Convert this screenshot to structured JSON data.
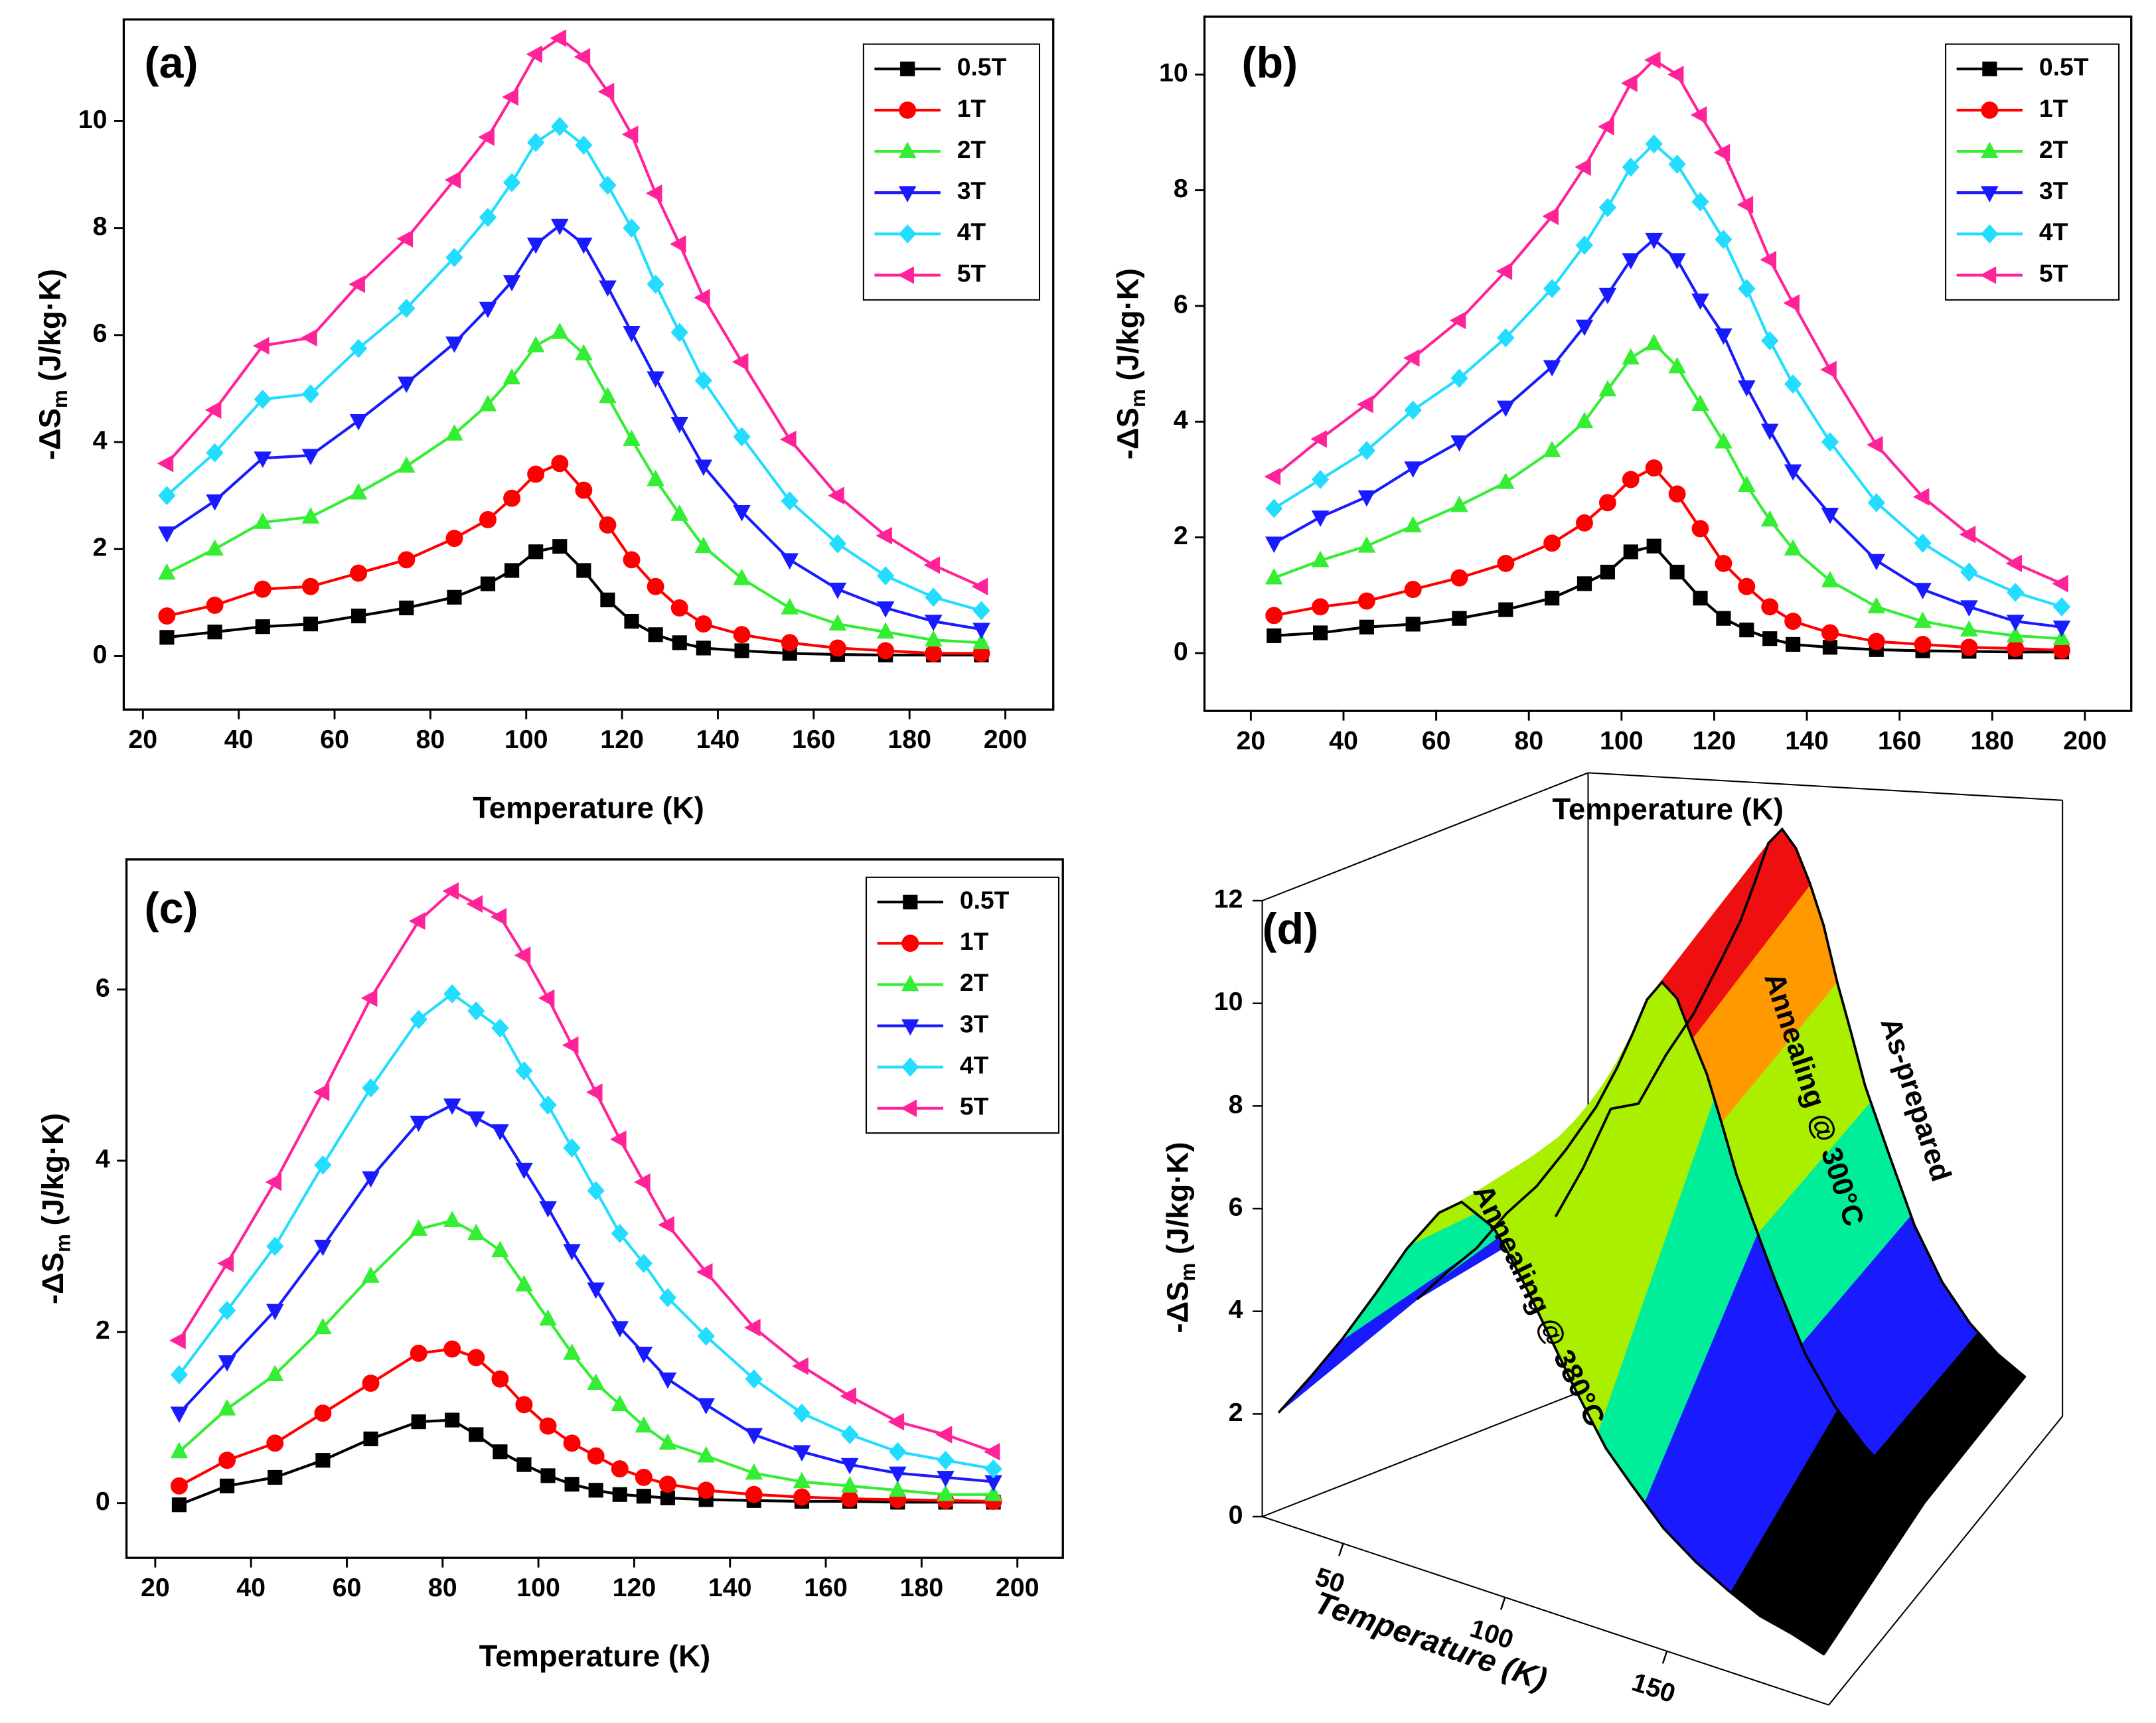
{
  "chart_data": [
    {
      "type": "line",
      "annotation": "(a)",
      "xlabel": "Temperature (K)",
      "ylabel": [
        "-ΔS",
        "m",
        " (J/kg·K)"
      ],
      "x": [
        25,
        35,
        45,
        55,
        65,
        75,
        85,
        92,
        97,
        102,
        107,
        112,
        117,
        122,
        127,
        132,
        137,
        145,
        155,
        165,
        175,
        185,
        195
      ],
      "xlim": [
        16,
        210
      ],
      "xticks": [
        20,
        40,
        60,
        80,
        100,
        120,
        140,
        160,
        180,
        200
      ],
      "ylim": [
        -1,
        11.9
      ],
      "yticks": [
        0,
        2,
        4,
        6,
        8,
        10
      ],
      "legend": "upper right",
      "series": [
        {
          "name": "0.5T",
          "color": "#000000",
          "marker": "square",
          "values": [
            0.35,
            0.45,
            0.55,
            0.6,
            0.75,
            0.9,
            1.1,
            1.35,
            1.6,
            1.95,
            2.05,
            1.6,
            1.05,
            0.65,
            0.4,
            0.25,
            0.15,
            0.1,
            0.05,
            0.03,
            0.02,
            0.02,
            0.02
          ]
        },
        {
          "name": "1T",
          "color": "#ff0000",
          "marker": "circle",
          "values": [
            0.75,
            0.95,
            1.25,
            1.3,
            1.55,
            1.8,
            2.2,
            2.55,
            2.95,
            3.4,
            3.6,
            3.1,
            2.45,
            1.8,
            1.3,
            0.9,
            0.6,
            0.4,
            0.25,
            0.15,
            0.1,
            0.05,
            0.05
          ]
        },
        {
          "name": "2T",
          "color": "#33ee33",
          "marker": "triangle-up",
          "values": [
            1.55,
            2.0,
            2.5,
            2.6,
            3.05,
            3.55,
            4.15,
            4.7,
            5.2,
            5.8,
            6.05,
            5.65,
            4.85,
            4.05,
            3.3,
            2.65,
            2.05,
            1.45,
            0.9,
            0.6,
            0.45,
            0.3,
            0.25
          ]
        },
        {
          "name": "3T",
          "color": "#1a1aff",
          "marker": "triangle-down",
          "values": [
            2.3,
            2.9,
            3.7,
            3.75,
            4.4,
            5.1,
            5.85,
            6.5,
            7.0,
            7.7,
            8.05,
            7.7,
            6.9,
            6.05,
            5.2,
            4.35,
            3.55,
            2.7,
            1.8,
            1.25,
            0.9,
            0.65,
            0.5
          ]
        },
        {
          "name": "4T",
          "color": "#22ddff",
          "marker": "diamond",
          "values": [
            3.0,
            3.8,
            4.8,
            4.9,
            5.75,
            6.5,
            7.45,
            8.2,
            8.85,
            9.6,
            9.9,
            9.55,
            8.8,
            8.0,
            6.95,
            6.05,
            5.15,
            4.1,
            2.9,
            2.1,
            1.5,
            1.1,
            0.85
          ]
        },
        {
          "name": "5T",
          "color": "#ff2299",
          "marker": "triangle-left",
          "values": [
            3.6,
            4.6,
            5.8,
            5.95,
            6.95,
            7.8,
            8.9,
            9.7,
            10.45,
            11.25,
            11.55,
            11.2,
            10.55,
            9.75,
            8.65,
            7.7,
            6.7,
            5.5,
            4.05,
            3.0,
            2.25,
            1.7,
            1.3
          ]
        }
      ]
    },
    {
      "type": "line",
      "annotation": "(b)",
      "xlabel": "Temperature (K)",
      "ylabel": [
        "-ΔS",
        "m",
        " (J/kg·K)"
      ],
      "x": [
        25,
        35,
        45,
        55,
        65,
        75,
        85,
        92,
        97,
        102,
        107,
        112,
        117,
        122,
        127,
        132,
        137,
        145,
        155,
        165,
        175,
        185,
        195
      ],
      "xlim": [
        10,
        210
      ],
      "xticks": [
        20,
        40,
        60,
        80,
        100,
        120,
        140,
        160,
        180,
        200
      ],
      "ylim": [
        -1,
        11
      ],
      "yticks": [
        0,
        2,
        4,
        6,
        8,
        10
      ],
      "legend": "upper right",
      "series": [
        {
          "name": "0.5T",
          "color": "#000000",
          "marker": "square",
          "values": [
            0.3,
            0.35,
            0.45,
            0.5,
            0.6,
            0.75,
            0.95,
            1.2,
            1.4,
            1.75,
            1.85,
            1.4,
            0.95,
            0.6,
            0.4,
            0.25,
            0.15,
            0.1,
            0.06,
            0.04,
            0.03,
            0.02,
            0.02
          ]
        },
        {
          "name": "1T",
          "color": "#ff0000",
          "marker": "circle",
          "values": [
            0.65,
            0.8,
            0.9,
            1.1,
            1.3,
            1.55,
            1.9,
            2.25,
            2.6,
            3.0,
            3.2,
            2.75,
            2.15,
            1.55,
            1.15,
            0.8,
            0.55,
            0.35,
            0.2,
            0.15,
            0.1,
            0.08,
            0.05
          ]
        },
        {
          "name": "2T",
          "color": "#33ee33",
          "marker": "triangle-up",
          "values": [
            1.3,
            1.6,
            1.85,
            2.2,
            2.55,
            2.95,
            3.5,
            4.0,
            4.55,
            5.1,
            5.35,
            4.95,
            4.3,
            3.65,
            2.9,
            2.3,
            1.8,
            1.25,
            0.8,
            0.55,
            0.4,
            0.3,
            0.25
          ]
        },
        {
          "name": "3T",
          "color": "#1a1aff",
          "marker": "triangle-down",
          "values": [
            1.9,
            2.35,
            2.7,
            3.2,
            3.65,
            4.25,
            4.95,
            5.65,
            6.2,
            6.8,
            7.15,
            6.8,
            6.1,
            5.5,
            4.6,
            3.85,
            3.15,
            2.4,
            1.6,
            1.1,
            0.8,
            0.55,
            0.45
          ]
        },
        {
          "name": "4T",
          "color": "#22ddff",
          "marker": "diamond",
          "values": [
            2.5,
            3.0,
            3.5,
            4.2,
            4.75,
            5.45,
            6.3,
            7.05,
            7.7,
            8.4,
            8.8,
            8.45,
            7.8,
            7.15,
            6.3,
            5.4,
            4.65,
            3.65,
            2.6,
            1.9,
            1.4,
            1.05,
            0.8
          ]
        },
        {
          "name": "5T",
          "color": "#ff2299",
          "marker": "triangle-left",
          "values": [
            3.05,
            3.7,
            4.3,
            5.1,
            5.75,
            6.6,
            7.55,
            8.4,
            9.1,
            9.85,
            10.25,
            10.0,
            9.3,
            8.65,
            7.75,
            6.8,
            6.05,
            4.9,
            3.6,
            2.7,
            2.05,
            1.55,
            1.2
          ]
        }
      ]
    },
    {
      "type": "line",
      "annotation": "(c)",
      "xlabel": "Temperature (K)",
      "ylabel": [
        "-ΔS",
        "m",
        " (J/kg·K)"
      ],
      "x": [
        25,
        35,
        45,
        55,
        65,
        75,
        82,
        87,
        92,
        97,
        102,
        107,
        112,
        117,
        122,
        127,
        135,
        145,
        155,
        165,
        175,
        185,
        195
      ],
      "xlim": [
        14,
        209.5
      ],
      "xticks": [
        20,
        40,
        60,
        80,
        100,
        120,
        140,
        160,
        180,
        200
      ],
      "ylim": [
        -0.64,
        7.52
      ],
      "yticks": [
        0,
        2,
        4,
        6
      ],
      "legend": "upper right",
      "series": [
        {
          "name": "0.5T",
          "color": "#000000",
          "marker": "square",
          "values": [
            -0.02,
            0.2,
            0.3,
            0.5,
            0.75,
            0.95,
            0.97,
            0.8,
            0.6,
            0.45,
            0.32,
            0.22,
            0.15,
            0.1,
            0.08,
            0.06,
            0.04,
            0.03,
            0.02,
            0.02,
            0.01,
            0.01,
            0.01
          ]
        },
        {
          "name": "1T",
          "color": "#ff0000",
          "marker": "circle",
          "values": [
            0.2,
            0.5,
            0.7,
            1.05,
            1.4,
            1.75,
            1.8,
            1.7,
            1.45,
            1.15,
            0.9,
            0.7,
            0.55,
            0.4,
            0.3,
            0.22,
            0.15,
            0.1,
            0.07,
            0.05,
            0.04,
            0.03,
            0.02
          ]
        },
        {
          "name": "2T",
          "color": "#33ee33",
          "marker": "triangle-up",
          "values": [
            0.6,
            1.1,
            1.5,
            2.05,
            2.65,
            3.2,
            3.3,
            3.15,
            2.95,
            2.55,
            2.15,
            1.75,
            1.4,
            1.15,
            0.9,
            0.7,
            0.55,
            0.35,
            0.25,
            0.2,
            0.15,
            0.1,
            0.1
          ]
        },
        {
          "name": "3T",
          "color": "#1a1aff",
          "marker": "triangle-down",
          "values": [
            1.05,
            1.65,
            2.25,
            3.0,
            3.8,
            4.45,
            4.65,
            4.5,
            4.35,
            3.9,
            3.45,
            2.95,
            2.5,
            2.05,
            1.75,
            1.45,
            1.15,
            0.8,
            0.6,
            0.45,
            0.35,
            0.3,
            0.25
          ]
        },
        {
          "name": "4T",
          "color": "#22ddff",
          "marker": "diamond",
          "values": [
            1.5,
            2.25,
            3.0,
            3.95,
            4.85,
            5.65,
            5.95,
            5.75,
            5.55,
            5.05,
            4.65,
            4.15,
            3.65,
            3.15,
            2.8,
            2.4,
            1.95,
            1.45,
            1.05,
            0.8,
            0.6,
            0.5,
            0.4
          ]
        },
        {
          "name": "5T",
          "color": "#ff2299",
          "marker": "triangle-left",
          "values": [
            1.9,
            2.8,
            3.75,
            4.8,
            5.9,
            6.8,
            7.15,
            7.0,
            6.85,
            6.4,
            5.9,
            5.35,
            4.8,
            4.25,
            3.75,
            3.25,
            2.7,
            2.05,
            1.6,
            1.25,
            0.95,
            0.8,
            0.6
          ]
        }
      ]
    },
    {
      "type": "surface3d",
      "annotation": "(d)",
      "xlabel": "Temperature (K)",
      "ylabel": [
        "-ΔS",
        "m",
        " (J/kg·K)"
      ],
      "xlim": [
        25,
        200
      ],
      "xticks": [
        50,
        100,
        150
      ],
      "zlim": [
        0,
        12
      ],
      "zticks": [
        0,
        2,
        4,
        6,
        8,
        10,
        12
      ],
      "band_colors": [
        "#000000",
        "#1a1aff",
        "#00ee99",
        "#aaee00",
        "#ff9900",
        "#ee1010"
      ],
      "series": [
        {
          "name": "Annealing @ 380°C",
          "x": [
            25,
            35,
            45,
            55,
            65,
            75,
            82,
            87,
            92,
            97,
            102,
            107,
            112,
            117,
            122,
            127,
            135,
            145,
            155,
            165,
            175,
            185,
            195
          ],
          "values": [
            1.9,
            2.8,
            3.75,
            4.8,
            5.9,
            6.8,
            7.15,
            7.0,
            6.85,
            6.4,
            5.9,
            5.35,
            4.8,
            4.25,
            3.75,
            3.25,
            2.7,
            2.05,
            1.6,
            1.25,
            0.95,
            0.8,
            0.6
          ]
        },
        {
          "name": "Annealing @ 300°C",
          "x": [
            25,
            35,
            45,
            55,
            65,
            75,
            85,
            92,
            97,
            102,
            107,
            112,
            117,
            122,
            127,
            132,
            137,
            145,
            155,
            165,
            175,
            185,
            195
          ],
          "values": [
            3.05,
            3.7,
            4.3,
            5.1,
            5.75,
            6.6,
            7.55,
            8.4,
            9.1,
            9.85,
            10.25,
            10.0,
            9.3,
            8.65,
            7.75,
            6.8,
            6.05,
            4.9,
            3.6,
            2.7,
            2.05,
            1.55,
            1.2
          ]
        },
        {
          "name": "As-prepared",
          "x": [
            25,
            35,
            45,
            55,
            65,
            75,
            85,
            92,
            97,
            102,
            107,
            112,
            117,
            122,
            127,
            132,
            137,
            145,
            155,
            165,
            175,
            185,
            195
          ],
          "values": [
            3.6,
            4.6,
            5.8,
            5.95,
            6.95,
            7.8,
            8.9,
            9.7,
            10.45,
            11.25,
            11.55,
            11.2,
            10.55,
            9.75,
            8.65,
            7.7,
            6.7,
            5.5,
            4.05,
            3.0,
            2.25,
            1.7,
            1.3
          ]
        }
      ]
    }
  ]
}
